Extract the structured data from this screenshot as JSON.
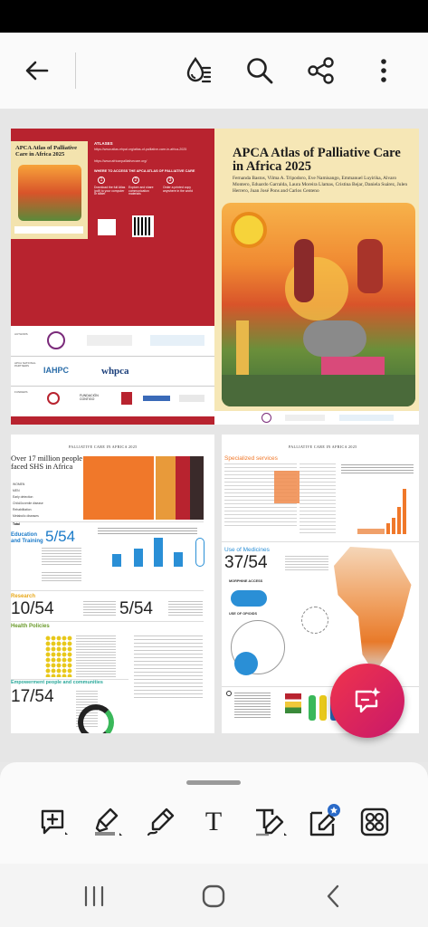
{
  "toolbar": {
    "back_icon": "arrow-left-icon",
    "reading_mode_icon": "droplet-lines-icon",
    "search_icon": "search-icon",
    "share_icon": "share-icon",
    "more_icon": "more-vertical-icon"
  },
  "cover_left": {
    "heading": "APCA Atlas of Palliative Care in Africa 2025",
    "atlas_label": "ATLASES",
    "url_line1": "https://www.atlas.ehpal.org/atlas-of-palliative-care-in-africa-2025",
    "url_line2": "https://www.africanpalliativecare.org/",
    "where_label": "WHERE TO ACCESS THE APCA ATLAS OF PALLIATIVE CARE",
    "step1": "1",
    "step2": "2",
    "step3": "3",
    "step1_text": "Download the full Atlas (pdf) to your computer or tablet",
    "step2_text": "Explore and share communication materials",
    "step3_text": "Order a printed copy anywhere in the world",
    "authors_label": "AUTHORS",
    "ncp_label": "APCA NATIONAL PARTNERS",
    "funders_label": "FUNDERS",
    "logo_iahpc": "IAHPC",
    "logo_whpca": "whpca",
    "logo_foundation": "FUNDACIÓN CONTIGO"
  },
  "cover_right": {
    "title": "APCA Atlas of Palliative Care in Africa 2025",
    "authors": "Fernanda Bastos, Vilma A. Tripodoro, Eve Namisango, Emmanuel Luyirika, Alvaro Montero, Eduardo Garralda, Laura Moreira Llamas, Cristina Bejar, Daniela Suárez, Julen Herrero, Juan José Pons and Carlos Centeno"
  },
  "spread_left": {
    "header": "PALLIATIVE CARE IN AFRICA 2025",
    "headline": "Over 17 million people faced SHS in Africa",
    "education_title": "Education and Training",
    "education_value": "5/54",
    "research_title": "Research",
    "research_value1": "10/54",
    "research_value2": "5/54",
    "health_policies_title": "Health Policies",
    "empowerment_title": "Empowerment people and communities",
    "empowerment_value": "17/54",
    "table_rows": [
      "WOMEN",
      "MEN",
      "Early detection",
      "Child/Juvenile disease",
      "Rehabilitation",
      "Metabolic diseases",
      "Total"
    ]
  },
  "spread_right": {
    "header": "PALLIATIVE CARE IN AFRICA 2025",
    "specialized_title": "Specialized services",
    "medicines_title": "Use of Medicines",
    "medicines_value": "37/54",
    "morphine_label": "MORPHINE ACCESS",
    "opioids_label": "USE OF OPIOIDS"
  },
  "fab": {
    "icon": "ai-chat-sparkle-icon"
  },
  "bottom_tools": {
    "comment_icon": "add-comment-icon",
    "highlight_icon": "highlighter-icon",
    "draw_icon": "pen-draw-icon",
    "text_icon": "text-icon",
    "text_edit_icon": "edit-text-icon",
    "sign_icon": "sign-pen-icon",
    "more_tools_icon": "grid-tools-icon",
    "text_label": "T"
  },
  "navbar": {
    "recents_icon": "recents-icon",
    "home_icon": "home-icon",
    "back_icon": "back-chevron-icon"
  },
  "colors": {
    "accent_red": "#b8232f",
    "cover_cream": "#f6e7b6",
    "fab_pink": "#e8244f",
    "chart_orange": "#f0782a",
    "chart_blue": "#2a8fd6"
  }
}
